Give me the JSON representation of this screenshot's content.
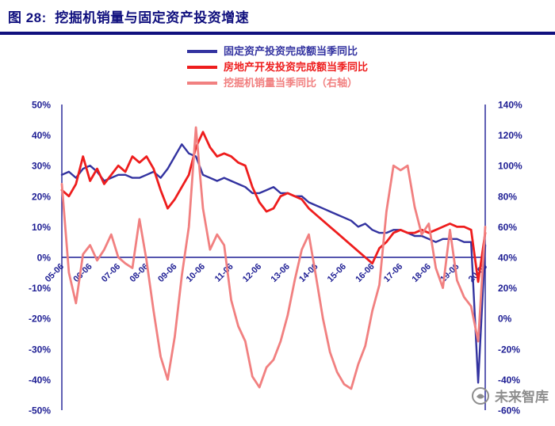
{
  "title": "图 28:  挖掘机销量与固定资产投资增速",
  "watermark": {
    "text": "未来智库"
  },
  "colors": {
    "title_navy": "#10107E",
    "axis_navy": "#1D1D93",
    "watermark_gray": "#8E8E8E"
  },
  "chart_data": {
    "type": "line",
    "title": "挖掘机销量与固定资产投资增速",
    "x_tick_labels": [
      "05-06",
      "06-06",
      "07-06",
      "08-06",
      "09-06",
      "10-06",
      "11-06",
      "12-06",
      "13-06",
      "14-06",
      "15-06",
      "16-06",
      "17-06",
      "18-06",
      "19-06",
      "20-06"
    ],
    "x_label_every_n_points": 4,
    "left_axis": {
      "min": -50,
      "max": 50,
      "step": 10,
      "unit": "%"
    },
    "right_axis": {
      "min": -60,
      "max": 140,
      "step": 20,
      "unit": "%"
    },
    "grid": false,
    "legend_position": "top-center",
    "series": [
      {
        "name": "固定资产投资完成额当季同比",
        "axis": "left",
        "color": "#3333A0",
        "width": 2.4,
        "values": [
          27,
          28,
          26,
          29,
          30,
          28,
          25,
          26,
          27,
          27,
          26,
          26,
          27,
          28,
          26,
          29,
          33,
          37,
          34,
          33,
          27,
          26,
          25,
          26,
          25,
          24,
          23,
          21,
          21,
          22,
          23,
          21,
          21,
          20,
          20,
          18,
          17,
          16,
          15,
          14,
          13,
          12,
          10,
          11,
          9,
          8,
          8,
          9,
          9,
          8,
          7,
          7,
          6,
          5,
          6,
          6,
          6,
          5,
          5,
          -41,
          4
        ]
      },
      {
        "name": "房地产开发投资完成额当季同比",
        "axis": "left",
        "color": "#EE1D1D",
        "width": 2.8,
        "values": [
          22,
          20,
          24,
          33,
          25,
          29,
          24,
          27,
          30,
          28,
          33,
          31,
          33,
          29,
          22,
          16,
          19,
          23,
          27,
          36,
          41,
          36,
          33,
          34,
          33,
          31,
          30,
          23,
          18,
          15,
          16,
          20,
          21,
          20,
          19,
          16,
          14,
          12,
          10,
          8,
          6,
          4,
          2,
          0,
          -2,
          3,
          5,
          8,
          9,
          8,
          8,
          9,
          8,
          9,
          10,
          11,
          10,
          10,
          9,
          -8,
          8
        ]
      },
      {
        "name": "挖掘机销量当季同比（右轴）",
        "axis": "right",
        "color": "#F18080",
        "width": 2.8,
        "values": [
          88,
          30,
          10,
          42,
          48,
          38,
          45,
          55,
          40,
          36,
          33,
          65,
          38,
          5,
          -25,
          -40,
          -12,
          28,
          60,
          125,
          72,
          45,
          55,
          48,
          12,
          -5,
          -15,
          -38,
          -45,
          -32,
          -27,
          -15,
          2,
          25,
          45,
          55,
          28,
          0,
          -22,
          -35,
          -43,
          -46,
          -30,
          -18,
          5,
          22,
          70,
          100,
          97,
          100,
          73,
          55,
          62,
          33,
          20,
          58,
          25,
          14,
          8,
          -15,
          60
        ]
      }
    ]
  }
}
